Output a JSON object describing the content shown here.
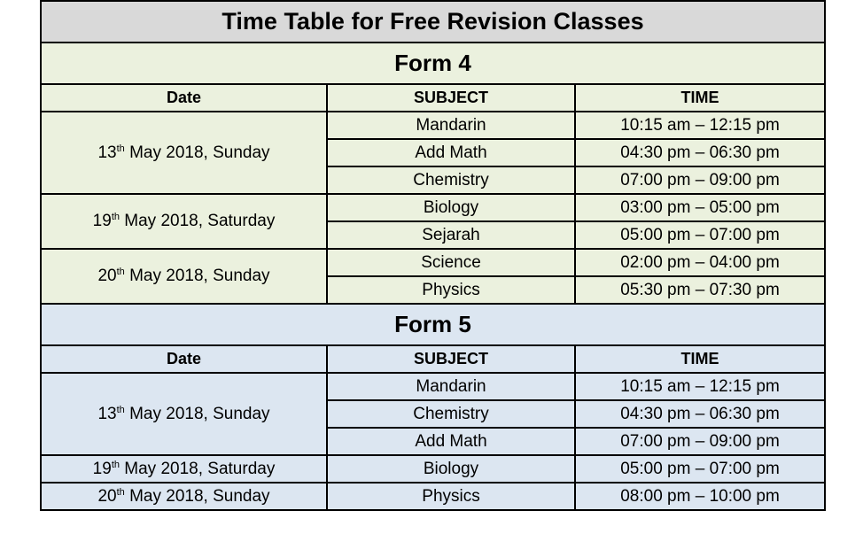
{
  "title": "Time Table for Free Revision Classes",
  "colors": {
    "title_bg": "#d9d9d9",
    "form4_bg": "#ebf1de",
    "form5_bg": "#dce6f1"
  },
  "headers": {
    "date": "Date",
    "subject": "SUBJECT",
    "time": "TIME"
  },
  "forms": [
    {
      "name": "Form 4",
      "dates": [
        {
          "day": "13",
          "suffix": "th",
          "rest": " May 2018, Sunday",
          "classes": [
            {
              "subject": "Mandarin",
              "time": "10:15 am – 12:15 pm"
            },
            {
              "subject": "Add Math",
              "time": "04:30 pm – 06:30 pm"
            },
            {
              "subject": "Chemistry",
              "time": "07:00 pm – 09:00 pm"
            }
          ]
        },
        {
          "day": "19",
          "suffix": "th",
          "rest": " May 2018, Saturday",
          "classes": [
            {
              "subject": "Biology",
              "time": "03:00 pm – 05:00 pm"
            },
            {
              "subject": "Sejarah",
              "time": "05:00 pm – 07:00 pm"
            }
          ]
        },
        {
          "day": "20",
          "suffix": "th",
          "rest": " May 2018, Sunday",
          "classes": [
            {
              "subject": "Science",
              "time": "02:00 pm – 04:00 pm"
            },
            {
              "subject": "Physics",
              "time": "05:30 pm – 07:30 pm"
            }
          ]
        }
      ]
    },
    {
      "name": "Form 5",
      "dates": [
        {
          "day": "13",
          "suffix": "th",
          "rest": " May 2018, Sunday",
          "classes": [
            {
              "subject": "Mandarin",
              "time": "10:15 am – 12:15 pm"
            },
            {
              "subject": "Chemistry",
              "time": "04:30 pm – 06:30 pm"
            },
            {
              "subject": "Add Math",
              "time": "07:00 pm – 09:00 pm"
            }
          ]
        },
        {
          "day": "19",
          "suffix": "th",
          "rest": " May 2018, Saturday",
          "classes": [
            {
              "subject": "Biology",
              "time": "05:00 pm – 07:00 pm"
            }
          ]
        },
        {
          "day": "20",
          "suffix": "th",
          "rest": " May 2018, Sunday",
          "classes": [
            {
              "subject": "Physics",
              "time": "08:00 pm – 10:00 pm"
            }
          ]
        }
      ]
    }
  ]
}
